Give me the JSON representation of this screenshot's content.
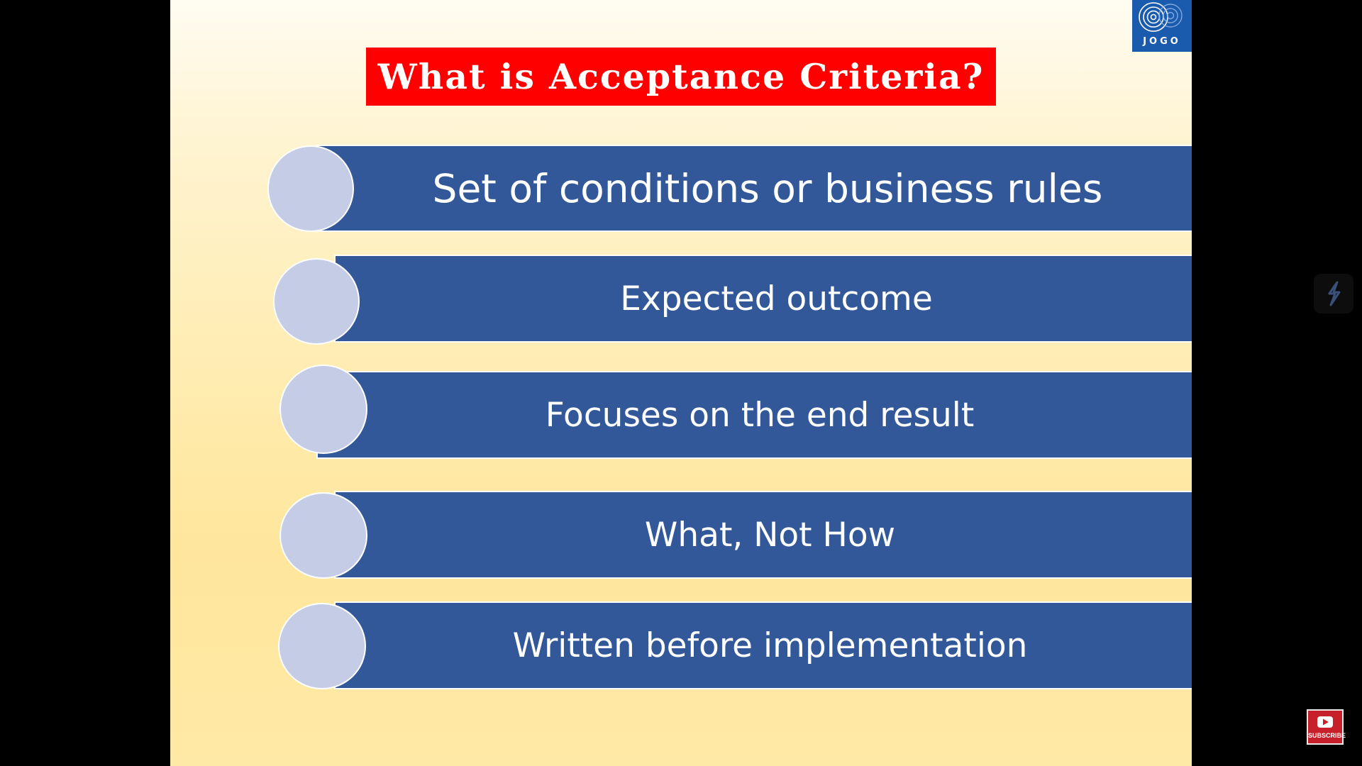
{
  "slide": {
    "title": "What is Acceptance Criteria?",
    "items": [
      {
        "label": "Set of conditions or business rules"
      },
      {
        "label": "Expected outcome"
      },
      {
        "label": "Focuses on the end result"
      },
      {
        "label": "What, Not How"
      },
      {
        "label": "Written before implementation"
      }
    ]
  },
  "logo": {
    "text": "JOGO",
    "icon": "concentric-circles-logo"
  },
  "overlay": {
    "side_icon": "bolt-icon",
    "subscribe_label": "SUBSCRIBE"
  },
  "colors": {
    "title_background": "#FF0000",
    "bar_fill": "#32589A",
    "circle_fill": "#C5CCE6",
    "logo_background": "#1A5BAD"
  }
}
